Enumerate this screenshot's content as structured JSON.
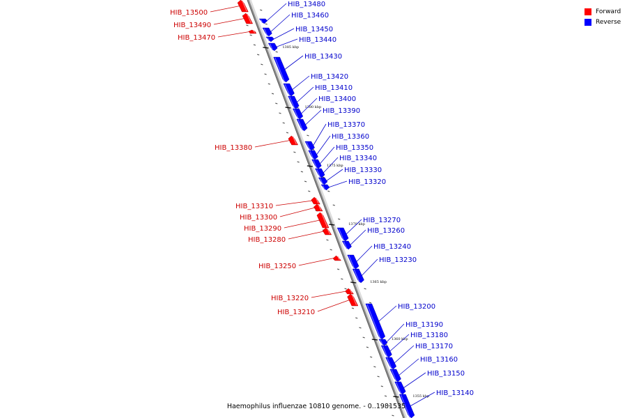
{
  "title": "Haemophilus influenzae 10810 genome. - 0..1981535",
  "colors": {
    "forward": "#ff0000",
    "reverse": "#0000ff",
    "forward_label": "#cc0000",
    "reverse_label": "#0000cc",
    "axis": "#8c8c8c"
  },
  "legend": [
    {
      "label": "Forward",
      "color": "#ff0000"
    },
    {
      "label": "Reverse",
      "color": "#0000ff"
    }
  ],
  "ticks": [
    {
      "label": "1385 kbp"
    },
    {
      "label": "1380 kbp"
    },
    {
      "label": "1375 kbp"
    },
    {
      "label": "1370 kbp"
    },
    {
      "label": "1365 kbp"
    },
    {
      "label": "1360 kbp"
    },
    {
      "label": "1355 kbp"
    }
  ],
  "genes": [
    {
      "name": "HIB_13500",
      "strand": "forward"
    },
    {
      "name": "HIB_13490",
      "strand": "forward"
    },
    {
      "name": "HIB_13470",
      "strand": "forward"
    },
    {
      "name": "HIB_13480",
      "strand": "reverse"
    },
    {
      "name": "HIB_13460",
      "strand": "reverse"
    },
    {
      "name": "HIB_13450",
      "strand": "reverse"
    },
    {
      "name": "HIB_13440",
      "strand": "reverse"
    },
    {
      "name": "HIB_13430",
      "strand": "reverse"
    },
    {
      "name": "HIB_13420",
      "strand": "reverse"
    },
    {
      "name": "HIB_13410",
      "strand": "reverse"
    },
    {
      "name": "HIB_13400",
      "strand": "reverse"
    },
    {
      "name": "HIB_13390",
      "strand": "reverse"
    },
    {
      "name": "HIB_13380",
      "strand": "forward"
    },
    {
      "name": "HIB_13370",
      "strand": "reverse"
    },
    {
      "name": "HIB_13360",
      "strand": "reverse"
    },
    {
      "name": "HIB_13350",
      "strand": "reverse"
    },
    {
      "name": "HIB_13340",
      "strand": "reverse"
    },
    {
      "name": "HIB_13330",
      "strand": "reverse"
    },
    {
      "name": "HIB_13320",
      "strand": "reverse"
    },
    {
      "name": "HIB_13310",
      "strand": "forward"
    },
    {
      "name": "HIB_13300",
      "strand": "forward"
    },
    {
      "name": "HIB_13290",
      "strand": "forward"
    },
    {
      "name": "HIB_13280",
      "strand": "forward"
    },
    {
      "name": "HIB_13270",
      "strand": "reverse"
    },
    {
      "name": "HIB_13260",
      "strand": "reverse"
    },
    {
      "name": "HIB_13250",
      "strand": "forward"
    },
    {
      "name": "HIB_13240",
      "strand": "reverse"
    },
    {
      "name": "HIB_13230",
      "strand": "reverse"
    },
    {
      "name": "HIB_13220",
      "strand": "forward"
    },
    {
      "name": "HIB_13210",
      "strand": "forward"
    },
    {
      "name": "HIB_13200",
      "strand": "reverse"
    },
    {
      "name": "HIB_13190",
      "strand": "reverse"
    },
    {
      "name": "HIB_13180",
      "strand": "reverse"
    },
    {
      "name": "HIB_13170",
      "strand": "reverse"
    },
    {
      "name": "HIB_13160",
      "strand": "reverse"
    },
    {
      "name": "HIB_13150",
      "strand": "reverse"
    },
    {
      "name": "HIB_13140",
      "strand": "reverse"
    }
  ]
}
